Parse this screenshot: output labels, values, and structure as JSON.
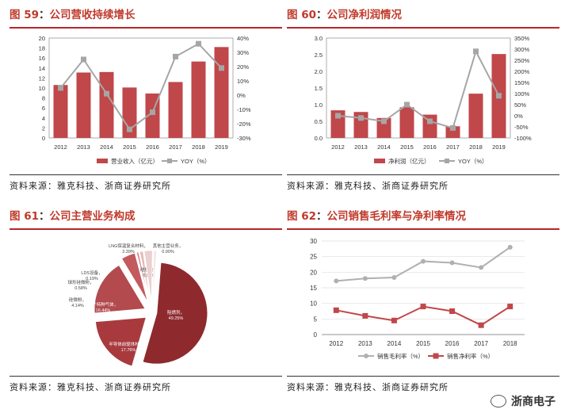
{
  "colors": {
    "bar": "#c0474a",
    "yoy": "#a6a6a6",
    "title": "#c0392b",
    "rule": "#b6262b"
  },
  "panels": {
    "p59": {
      "fig": "图 59",
      "sep": "：",
      "title": "公司营收持续增长",
      "source": "资料来源：雅克科技、浙商证券研究所"
    },
    "p60": {
      "fig": "图 60",
      "sep": "：",
      "title": "公司净利润情况",
      "source": "资料来源：雅克科技、浙商证券研究所"
    },
    "p61": {
      "fig": "图 61",
      "sep": "：",
      "title": "公司主营业务构成",
      "source": "资料来源：雅克科技、浙商证券研究所"
    },
    "p62": {
      "fig": "图 62",
      "sep": "：",
      "title": "公司销售毛利率与净利率情况",
      "source": "资料来源：雅克科技、浙商证券研究所"
    }
  },
  "watermark": "浙商电子",
  "chart_data": [
    {
      "id": "revenue",
      "type": "bar",
      "categories": [
        "2012",
        "2013",
        "2014",
        "2015",
        "2016",
        "2017",
        "2018",
        "2019"
      ],
      "series": [
        {
          "name": "营业收入（亿元）",
          "axis": "left",
          "kind": "bar",
          "values": [
            10.6,
            13.1,
            13.2,
            10.1,
            8.9,
            11.2,
            15.3,
            18.2
          ]
        },
        {
          "name": "YOY（%）",
          "axis": "right",
          "kind": "line",
          "values": [
            5,
            25,
            1,
            -24,
            -12,
            27,
            36,
            19
          ]
        }
      ],
      "ylim": [
        0,
        20
      ],
      "yticks": [
        "0",
        "2",
        "4",
        "6",
        "8",
        "10",
        "12",
        "14",
        "16",
        "18",
        "20"
      ],
      "y2lim": [
        -30,
        40
      ],
      "y2ticks": [
        "-30%",
        "-20%",
        "-10%",
        "0%",
        "10%",
        "20%",
        "30%",
        "40%"
      ],
      "legend": "bottom"
    },
    {
      "id": "netprofit",
      "type": "bar",
      "categories": [
        "2012",
        "2013",
        "2014",
        "2015",
        "2016",
        "2017",
        "2018",
        "2019"
      ],
      "series": [
        {
          "name": "净利润（亿元）",
          "axis": "left",
          "kind": "bar",
          "values": [
            0.83,
            0.78,
            0.6,
            0.92,
            0.7,
            0.35,
            1.33,
            2.52
          ]
        },
        {
          "name": "YOY（%）",
          "axis": "right",
          "kind": "line",
          "values": [
            0,
            -10,
            -25,
            50,
            -25,
            -55,
            290,
            90
          ]
        }
      ],
      "ylim": [
        0,
        3
      ],
      "yticks": [
        "0.0",
        "0.5",
        "1.0",
        "1.5",
        "2.0",
        "2.5",
        "3.0"
      ],
      "y2lim": [
        -100,
        350
      ],
      "y2ticks": [
        "-100%",
        "-50%",
        "0%",
        "50%",
        "100%",
        "150%",
        "200%",
        "250%",
        "300%",
        "350%"
      ],
      "legend": "bottom"
    },
    {
      "id": "business_mix",
      "type": "pie",
      "slices": [
        {
          "label": "阻燃剂，49.25%",
          "value": 49.25,
          "color": "#8e2a2e"
        },
        {
          "label": "半导体前驱体材料，17.76%",
          "value": 17.76,
          "color": "#a83a3e"
        },
        {
          "label": "电子特种气体，16.44%",
          "value": 16.44,
          "color": "#b24a4e"
        },
        {
          "label": "硅微粉，4.14%",
          "value": 4.14,
          "color": "#c25a5e"
        },
        {
          "label": "球形硅微粉，0.58%",
          "value": 0.58,
          "color": "#cf7a7d"
        },
        {
          "label": "LDS设备，0.19%",
          "value": 0.19,
          "color": "#d9999b"
        },
        {
          "label": "硅烷类，0.94%",
          "value": 0.94,
          "color": "#e4b8ba"
        },
        {
          "label": "LNG保温复合材料，2.39%",
          "value": 2.39,
          "color": "#eccfd0"
        },
        {
          "label": "其他主营业务，0.90%",
          "value": 0.9,
          "color": "#f5e6e6"
        }
      ]
    },
    {
      "id": "margins",
      "type": "line",
      "x": [
        "2012",
        "2013",
        "2014",
        "2015",
        "2016",
        "2017",
        "2018"
      ],
      "series": [
        {
          "name": "销售毛利率（%）",
          "values": [
            17.2,
            18.0,
            18.3,
            23.5,
            23.0,
            21.5,
            28.0
          ],
          "color": "#b0b0b0"
        },
        {
          "name": "销售净利率（%）",
          "values": [
            7.8,
            6.0,
            4.5,
            9.0,
            7.5,
            3.0,
            9.0
          ],
          "color": "#c0474a"
        }
      ],
      "ylim": [
        0,
        30
      ],
      "yticks": [
        "0",
        "5",
        "10",
        "15",
        "20",
        "25",
        "30"
      ],
      "legend": "bottom"
    }
  ]
}
